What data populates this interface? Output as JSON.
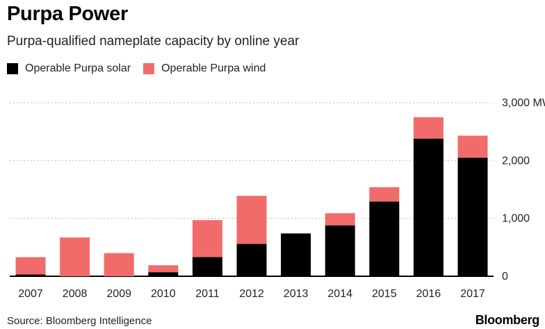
{
  "title": "Purpa Power",
  "subtitle": "Purpa-qualified nameplate capacity by online year",
  "source": "Source: Bloomberg Intelligence",
  "brand": "Bloomberg",
  "colors": {
    "solar": "#000000",
    "wind": "#f26b6b",
    "grid": "#bdbdbd",
    "axis": "#000000"
  },
  "chart_data": {
    "type": "bar",
    "stacked": true,
    "categories": [
      "2007",
      "2008",
      "2009",
      "2010",
      "2011",
      "2012",
      "2013",
      "2014",
      "2015",
      "2016",
      "2017"
    ],
    "series": [
      {
        "name": "Operable Purpa solar",
        "values": [
          30,
          0,
          0,
          70,
          330,
          560,
          740,
          880,
          1290,
          2380,
          2050
        ]
      },
      {
        "name": "Operable Purpa wind",
        "values": [
          300,
          670,
          400,
          120,
          640,
          830,
          0,
          210,
          250,
          370,
          380
        ]
      }
    ],
    "ylim": [
      0,
      3000
    ],
    "yticks": [
      0,
      1000,
      2000,
      3000
    ],
    "ytick_labels": [
      "0",
      "1,000",
      "2,000",
      "3,000 MW"
    ],
    "grid": true,
    "legend_position": "top-left"
  }
}
